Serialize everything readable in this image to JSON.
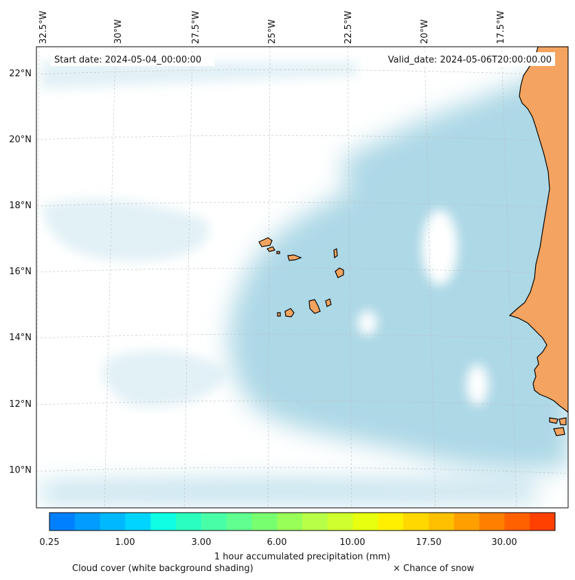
{
  "map": {
    "start_label": "Start date: 2024-05-04_00:00:00",
    "valid_label": "Valid_date: 2024-05-06T20:00:00.00",
    "lon_labels": [
      "32.5°W",
      "30°W",
      "27.5°W",
      "25°W",
      "22.5°W",
      "20°W",
      "17.5°W"
    ],
    "lat_labels": [
      "22°N",
      "20°N",
      "18°N",
      "16°N",
      "14°N",
      "12°N",
      "10°N"
    ],
    "colors": {
      "ocean_cloud": "#add8e6",
      "land": "#f4a460",
      "coast": "#000000",
      "grid": "#bbbbbb"
    }
  },
  "colorbar": {
    "colors": [
      "#0080ff",
      "#009cff",
      "#00b8ff",
      "#00d4ff",
      "#10ffe4",
      "#2affc0",
      "#48ffa8",
      "#60ff90",
      "#78ff70",
      "#98ff58",
      "#b8ff48",
      "#d0ff30",
      "#e8ff10",
      "#fff000",
      "#ffd800",
      "#ffc000",
      "#ffa000",
      "#ff8000",
      "#ff6000",
      "#ff4000"
    ],
    "tick_labels": [
      "0.25",
      "1.00",
      "3.00",
      "6.00",
      "10.00",
      "17.50",
      "30.00"
    ],
    "label": "1 hour accumulated precipitation (mm)"
  },
  "footer": {
    "cloud_note": "Cloud cover (white background shading)",
    "snow_note": "× Chance of snow"
  }
}
